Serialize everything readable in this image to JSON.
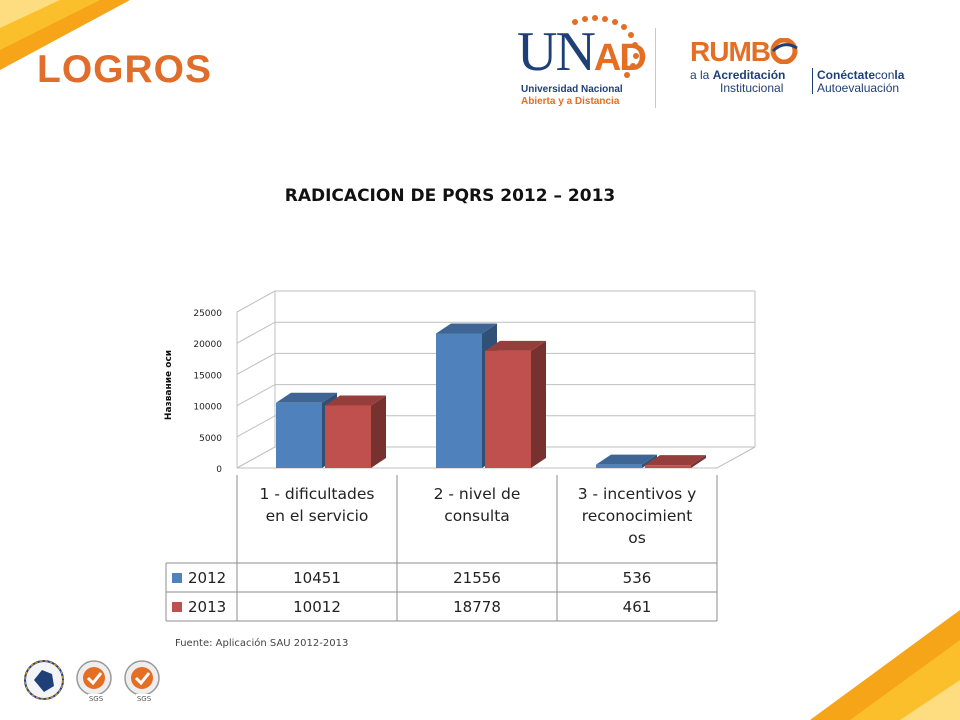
{
  "slide": {
    "title": "LOGROS",
    "source_note": "Fuente: Aplicación SAU 2012-2013",
    "accent_color": "#e06d2a"
  },
  "logos": {
    "unad": {
      "letters_main": "UN",
      "letters_accent": "AD",
      "line1": "Universidad Nacional",
      "line2": "Abierta y a Distancia"
    },
    "rumbo": {
      "word": "RUMB",
      "line1_prefix": "a la ",
      "line1_bold": "Acreditación",
      "line2": "Institucional",
      "c1_bold": "Conéctate",
      "c1_rest": "con",
      "c1_bold2": "la",
      "c2": "Autoevaluación"
    },
    "footer": [
      "colombia-seal-icon",
      "sgs-cert-icon",
      "sgs-cert-icon"
    ]
  },
  "chart_data": {
    "type": "bar",
    "title": "RADICACION DE PQRS 2012 – 2013",
    "ylabel": "Название оси",
    "xlabel": "",
    "ylim": [
      0,
      25000
    ],
    "yticks": [
      0,
      5000,
      10000,
      15000,
      20000,
      25000
    ],
    "grid": true,
    "categories": [
      "1 - dificultades en el servicio",
      "2 - nivel de consulta",
      "3 - incentivos y reconocimientos"
    ],
    "category_label_lines": [
      [
        "1 - dificultades",
        "en el servicio"
      ],
      [
        "2 - nivel de",
        "consulta"
      ],
      [
        "3 - incentivos y",
        "reconocimient",
        "os"
      ]
    ],
    "series": [
      {
        "name": "2012",
        "values": [
          10451,
          21556,
          536
        ],
        "color": "#4f81bd"
      },
      {
        "name": "2013",
        "values": [
          10012,
          18778,
          461
        ],
        "color": "#c0504d"
      }
    ],
    "legend": "data-table-left"
  }
}
